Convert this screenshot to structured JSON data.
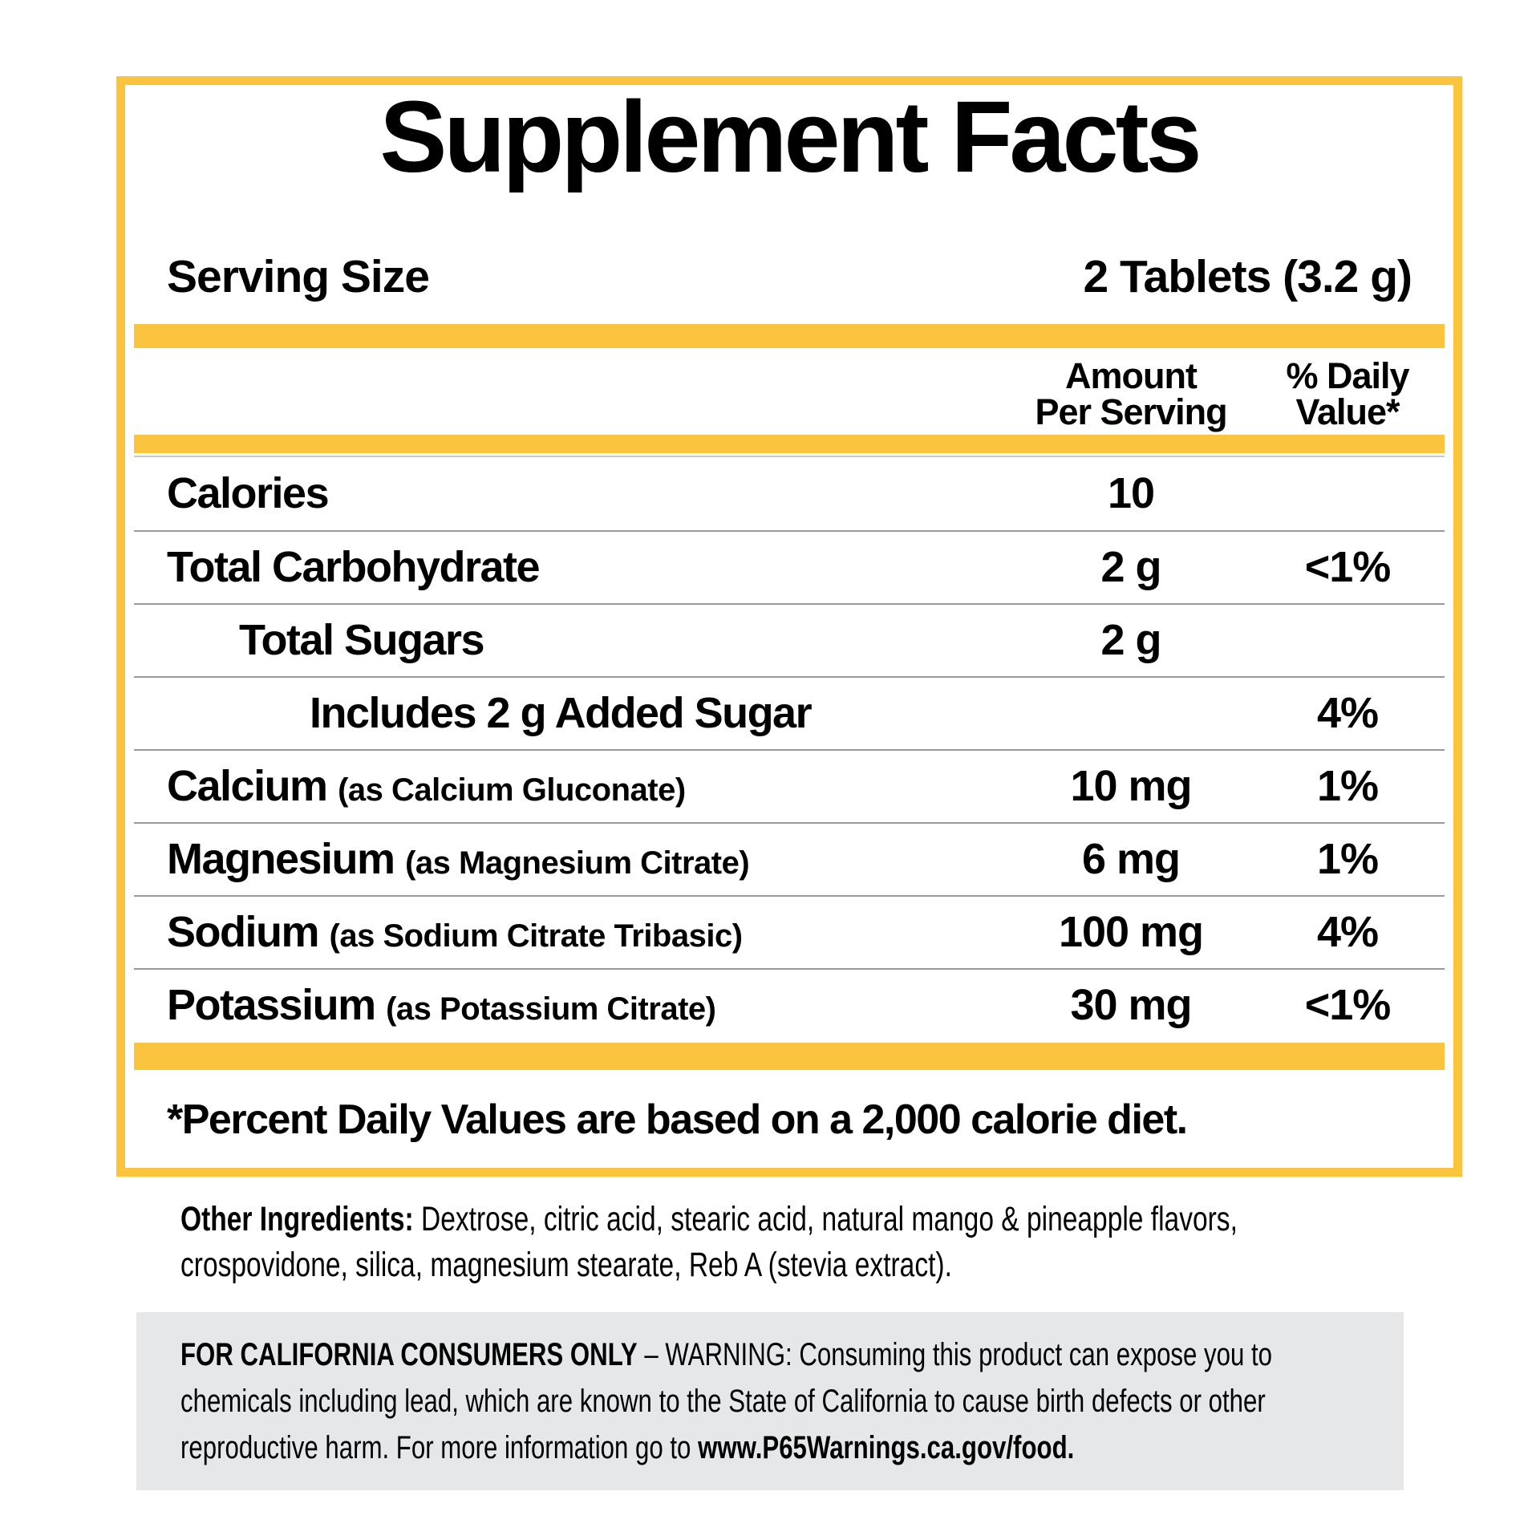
{
  "panel": {
    "title": "Supplement Facts",
    "serving_size": {
      "label": "Serving Size",
      "value": "2 Tablets (3.2 g)"
    },
    "columns": {
      "amount_line1": "Amount",
      "amount_line2": "Per Serving",
      "dv_line1": "% Daily",
      "dv_line2": "Value*"
    },
    "rows": [
      {
        "name": "Calories",
        "detail": "",
        "amount": "10",
        "dv": ""
      },
      {
        "name": "Total Carbohydrate",
        "detail": "",
        "amount": "2 g",
        "dv": "<1%"
      },
      {
        "name": "Total Sugars",
        "detail": "",
        "amount": "2 g",
        "dv": ""
      },
      {
        "name": "Includes 2 g Added Sugar",
        "detail": "",
        "amount": "",
        "dv": "4%"
      },
      {
        "name": "Calcium",
        "detail": "(as Calcium Gluconate)",
        "amount": "10 mg",
        "dv": "1%"
      },
      {
        "name": "Magnesium",
        "detail": "(as Magnesium Citrate)",
        "amount": "6 mg",
        "dv": "1%"
      },
      {
        "name": "Sodium",
        "detail": "(as Sodium Citrate Tribasic)",
        "amount": "100 mg",
        "dv": "4%"
      },
      {
        "name": "Potassium",
        "detail": "(as Potassium Citrate)",
        "amount": "30 mg",
        "dv": "<1%"
      }
    ],
    "footnote": "*Percent Daily Values are based on a 2,000 calorie diet."
  },
  "other_ingredients": {
    "label": "Other Ingredients:",
    "text": " Dextrose, citric acid, stearic acid, natural mango & pineapple flavors, crospovidone, silica, magnesium stearate, Reb A (stevia extract)."
  },
  "california_warning": {
    "heading": "FOR CALIFORNIA CONSUMERS ONLY",
    "body": " – WARNING: Consuming this product can expose you to chemicals including lead, which are known to the State of California to cause birth defects or other reproductive harm. For more information go to ",
    "link": "www.P65Warnings.ca.gov/food."
  },
  "colors": {
    "accent_yellow": "#FAC43E",
    "warning_bg": "#E6E7E8",
    "separator_gray": "#999999"
  }
}
